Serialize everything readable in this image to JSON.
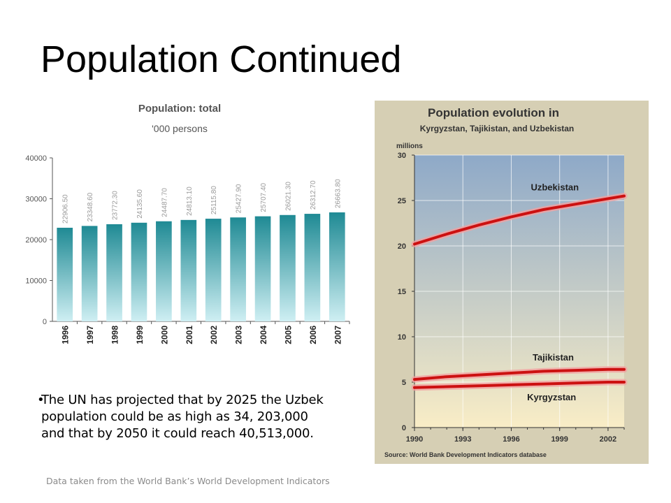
{
  "slide": {
    "title": "Population Continued",
    "bullet": "The UN has projected that by 2025 the Uzbek population could be as high as 34, 203,000 and that by 2050 it could reach 40,513,000.",
    "footnote": "Data taken from the World Bank’s  World Development Indicators"
  },
  "chart_data": [
    {
      "type": "bar",
      "title": "Population: total",
      "subtitle": "'000 persons",
      "categories": [
        "1996",
        "1997",
        "1998",
        "1999",
        "2000",
        "2001",
        "2002",
        "2003",
        "2004",
        "2005",
        "2006",
        "2007"
      ],
      "values": [
        22906.5,
        23348.6,
        23772.3,
        24135.6,
        24487.7,
        24813.1,
        25115.8,
        25427.9,
        25707.4,
        26021.3,
        26312.7,
        26663.8
      ],
      "value_labels": [
        "22906.50",
        "23348.60",
        "23772.30",
        "24135.60",
        "24487.70",
        "24813.10",
        "25115.80",
        "25427.90",
        "25707.40",
        "26021.30",
        "26312.70",
        "26663.80"
      ],
      "ylim": [
        0,
        40000
      ],
      "yticks": [
        "0",
        "10000",
        "20000",
        "30000",
        "40000"
      ],
      "grid": false,
      "colors": {
        "bar_top": "#1f8a94",
        "bar_bottom": "#cfeff3",
        "label": "#9a9a9a",
        "axis": "#555555"
      }
    },
    {
      "type": "line",
      "title": "Population evolution in",
      "subtitle": "Kyrgyzstan, Tajikistan, and Uzbekistan",
      "ylabel": "millions",
      "source": "Source: World Bank Development Indicators database",
      "xlim": [
        1990,
        2003
      ],
      "ylim": [
        0,
        30
      ],
      "xticks": [
        "1990",
        "1993",
        "1996",
        "1999",
        "2002"
      ],
      "yticks": [
        "0",
        "5",
        "10",
        "15",
        "20",
        "25",
        "30"
      ],
      "grid": true,
      "series": [
        {
          "name": "Uzbekistan",
          "x": [
            1990,
            1992,
            1994,
            1996,
            1998,
            2000,
            2002,
            2003
          ],
          "y": [
            20.2,
            21.3,
            22.3,
            23.2,
            24.0,
            24.6,
            25.2,
            25.5
          ]
        },
        {
          "name": "Tajikistan",
          "x": [
            1990,
            1992,
            1994,
            1996,
            1998,
            2000,
            2002,
            2003
          ],
          "y": [
            5.3,
            5.6,
            5.8,
            6.0,
            6.2,
            6.3,
            6.4,
            6.4
          ]
        },
        {
          "name": "Kyrgyzstan",
          "x": [
            1990,
            1992,
            1994,
            1996,
            1998,
            2000,
            2002,
            2003
          ],
          "y": [
            4.4,
            4.5,
            4.6,
            4.7,
            4.8,
            4.9,
            5.0,
            5.0
          ]
        }
      ],
      "colors": {
        "frame": "#d6cfb4",
        "plot_top": "#8ea9c8",
        "plot_bottom": "#f9edc6",
        "line": "#cc1111",
        "line_glow": "#f2a0a0",
        "text": "#333333"
      }
    }
  ]
}
